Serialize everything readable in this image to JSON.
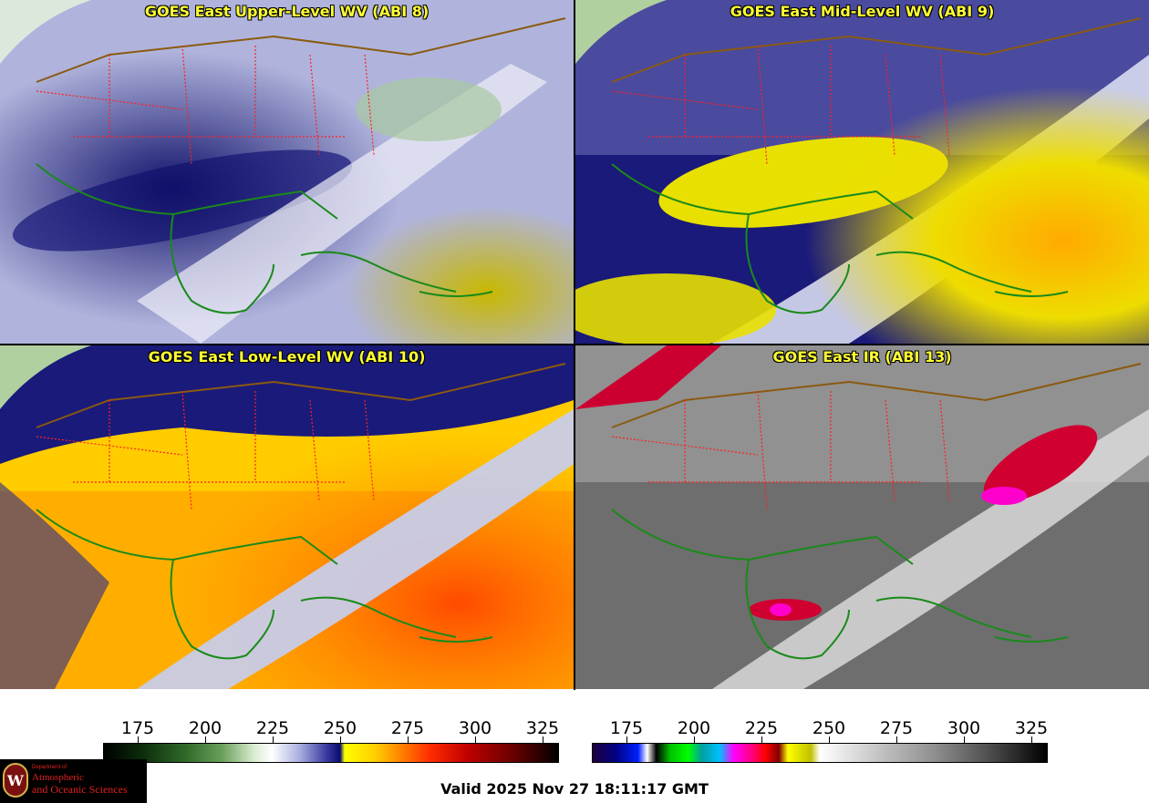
{
  "panels": [
    {
      "title": "GOES East Upper-Level WV (ABI 8)",
      "palette": "wv-upper"
    },
    {
      "title": "GOES East Mid-Level WV (ABI 9)",
      "palette": "wv-mid"
    },
    {
      "title": "GOES East Low-Level WV (ABI 10)",
      "palette": "wv-low"
    },
    {
      "title": "GOES East IR (ABI 13)",
      "palette": "ir"
    }
  ],
  "colorbar_left": {
    "ticks": [
      "175",
      "200",
      "225",
      "250",
      "275",
      "300",
      "325"
    ]
  },
  "colorbar_right": {
    "ticks": [
      "175",
      "200",
      "225",
      "250",
      "275",
      "300",
      "325"
    ]
  },
  "valid_time": "Valid 2025 Nov 27 18:11:17 GMT",
  "logo": {
    "dept": "Department of",
    "line1": "Atmospheric",
    "line2": "and Oceanic Sciences",
    "seal": "W"
  },
  "colors": {
    "title": "#ffff33",
    "state_borders": "#ff2020",
    "coastline": "#1a8a1a",
    "country_borders": "#8a5a10"
  }
}
